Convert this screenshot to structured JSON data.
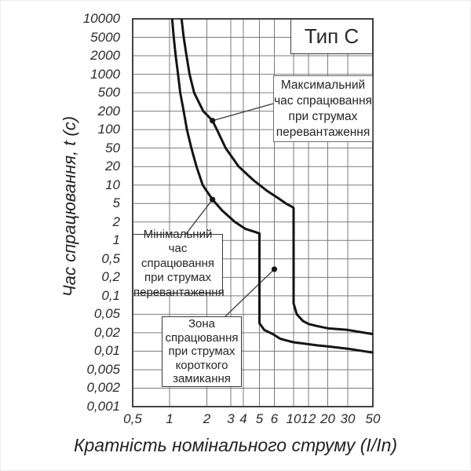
{
  "colors": {
    "curve": "#141414",
    "grid": "#7b7b7b",
    "plot_border": "#444444",
    "text": "#2b2b2b",
    "leader": "#3a3a3a",
    "background": "#ffffff"
  },
  "annotations": {
    "type_label": "Тип С",
    "max": {
      "lines": [
        "Максимальний",
        "час спрацювання",
        "при струмах",
        "перевантаження"
      ],
      "marker": {
        "x": 2.2,
        "t": 140
      }
    },
    "min": {
      "lines": [
        "Мінімальний",
        "час спрацювання",
        "при струмах",
        "перевантаження"
      ],
      "marker": {
        "x": 2.2,
        "t": 5.8
      }
    },
    "zone": {
      "lines": [
        "Зона",
        "спрацювання",
        "при струмах",
        "короткого",
        "замикання"
      ],
      "marker": {
        "x": 6,
        "t": 0.3
      }
    }
  },
  "chart_data": {
    "type": "line",
    "title": "Тип С",
    "xlabel": "Кратність номінального струму (I/In)",
    "ylabel": "Час спрацювання, t (с)",
    "x_scale": "log",
    "y_scale": "log",
    "grid": true,
    "xlim": [
      0.5,
      50
    ],
    "ylim": [
      0.001,
      10000
    ],
    "x_ticks": [
      0.5,
      1,
      2,
      3,
      4,
      5,
      6,
      10,
      12,
      20,
      30,
      50
    ],
    "x_tick_labels": [
      "0,5",
      "1",
      "2",
      "3",
      "4",
      "5",
      "6",
      "10",
      "12",
      "20",
      "30",
      "50"
    ],
    "y_ticks": [
      10000,
      5000,
      2000,
      1000,
      500,
      200,
      100,
      50,
      20,
      10,
      5,
      2,
      1,
      0.5,
      0.2,
      0.1,
      0.05,
      0.02,
      0.01,
      0.005,
      0.002,
      0.001
    ],
    "y_tick_labels": [
      "10000",
      "5000",
      "2000",
      "1000",
      "500",
      "200",
      "100",
      "50",
      "20",
      "10",
      "5",
      "2",
      "1",
      "0,5",
      "0,2",
      "0,1",
      "0,05",
      "0,02",
      "0,01",
      "0,005",
      "0,002",
      "0,001"
    ],
    "series": [
      {
        "name": "Максимальний час спрацювання при струмах перевантаження",
        "points": [
          [
            1.25,
            10000
          ],
          [
            1.3,
            5000
          ],
          [
            1.37,
            2000
          ],
          [
            1.45,
            1000
          ],
          [
            1.58,
            500
          ],
          [
            1.87,
            200
          ],
          [
            2.2,
            140
          ],
          [
            2.37,
            100
          ],
          [
            2.75,
            50
          ],
          [
            3.6,
            20
          ],
          [
            4.6,
            12
          ],
          [
            5.5,
            8
          ],
          [
            6.8,
            6
          ],
          [
            8.3,
            4.9
          ],
          [
            9.5,
            4.3
          ],
          [
            10,
            4
          ],
          [
            10,
            0.075
          ],
          [
            10.4,
            0.05
          ],
          [
            11.2,
            0.036
          ],
          [
            12,
            0.031
          ],
          [
            15,
            0.028
          ],
          [
            20,
            0.025
          ],
          [
            30,
            0.023
          ],
          [
            50,
            0.019
          ]
        ]
      },
      {
        "name": "Мінімальний час спрацювання при струмах перевантаження",
        "points": [
          [
            1.05,
            10000
          ],
          [
            1.08,
            5000
          ],
          [
            1.12,
            2000
          ],
          [
            1.17,
            1000
          ],
          [
            1.22,
            500
          ],
          [
            1.3,
            200
          ],
          [
            1.38,
            100
          ],
          [
            1.5,
            50
          ],
          [
            1.65,
            20
          ],
          [
            1.85,
            10
          ],
          [
            2.2,
            5.8
          ],
          [
            2.6,
            3.5
          ],
          [
            3.3,
            2
          ],
          [
            4.1,
            1.55
          ],
          [
            4.7,
            1.38
          ],
          [
            5,
            1.3
          ],
          [
            5,
            0.032
          ],
          [
            5.3,
            0.023
          ],
          [
            5.9,
            0.019
          ],
          [
            7,
            0.016
          ],
          [
            8.5,
            0.0148
          ],
          [
            10,
            0.014
          ],
          [
            15,
            0.0125
          ],
          [
            20,
            0.012
          ],
          [
            30,
            0.011
          ],
          [
            50,
            0.0095
          ]
        ]
      }
    ]
  }
}
